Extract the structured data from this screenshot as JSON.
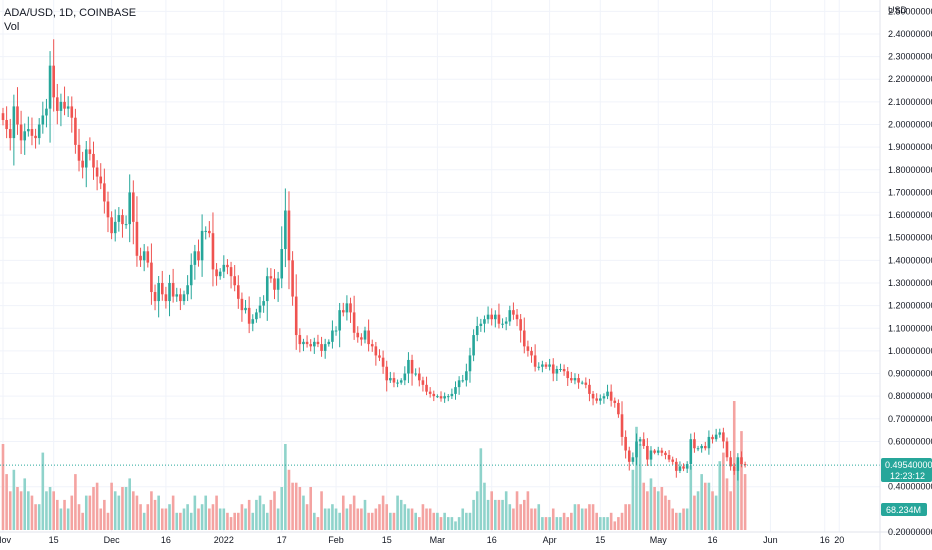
{
  "legend": {
    "symbol": "ADA/USD, 1D, COINBASE",
    "volume_label": "Vol"
  },
  "colors": {
    "up": "#26a69a",
    "down": "#ef5350",
    "up_volume": "#8fd3cb",
    "down_volume": "#f4a3a1",
    "grid": "#f0f3fa",
    "badge": "#26a69a",
    "text": "#131722"
  },
  "price_badge": {
    "value": "0.49540000",
    "countdown": "12:23:12"
  },
  "volume_badge": {
    "value": "68.234M"
  },
  "chart_data": {
    "type": "candlestick",
    "currency_label": "USD",
    "ylim": [
      0.2,
      2.55
    ],
    "y_ticks": [
      "2.50000000",
      "2.40000000",
      "2.30000000",
      "2.20000000",
      "2.10000000",
      "2.00000000",
      "1.90000000",
      "1.80000000",
      "1.70000000",
      "1.60000000",
      "1.50000000",
      "1.40000000",
      "1.30000000",
      "1.20000000",
      "1.10000000",
      "1.00000000",
      "0.90000000",
      "0.80000000",
      "0.70000000",
      "0.60000000",
      "0.40000000",
      "0.20000000"
    ],
    "x_ticks": [
      {
        "label": "Nov",
        "day": 0
      },
      {
        "label": "15",
        "day": 14
      },
      {
        "label": "Dec",
        "day": 30
      },
      {
        "label": "16",
        "day": 45
      },
      {
        "label": "2022",
        "day": 61
      },
      {
        "label": "17",
        "day": 77
      },
      {
        "label": "Feb",
        "day": 92
      },
      {
        "label": "15",
        "day": 106
      },
      {
        "label": "Mar",
        "day": 120
      },
      {
        "label": "16",
        "day": 135
      },
      {
        "label": "Apr",
        "day": 151
      },
      {
        "label": "15",
        "day": 165
      },
      {
        "label": "May",
        "day": 181
      },
      {
        "label": "16",
        "day": 196
      },
      {
        "label": "Jun",
        "day": 212
      },
      {
        "label": "16",
        "day": 227
      },
      {
        "label": "20",
        "day": 231
      }
    ],
    "closes": [
      2.02,
      1.98,
      1.94,
      2.08,
      2.0,
      1.93,
      1.97,
      1.98,
      1.95,
      1.94,
      2.0,
      2.04,
      2.07,
      2.26,
      2.12,
      2.06,
      2.1,
      2.07,
      2.08,
      2.03,
      1.91,
      1.84,
      1.81,
      1.89,
      1.87,
      1.81,
      1.77,
      1.74,
      1.66,
      1.59,
      1.52,
      1.57,
      1.6,
      1.56,
      1.56,
      1.7,
      1.57,
      1.42,
      1.4,
      1.44,
      1.39,
      1.26,
      1.22,
      1.3,
      1.25,
      1.22,
      1.3,
      1.24,
      1.25,
      1.22,
      1.25,
      1.29,
      1.38,
      1.44,
      1.4,
      1.53,
      1.53,
      1.52,
      1.36,
      1.33,
      1.35,
      1.38,
      1.37,
      1.33,
      1.29,
      1.23,
      1.18,
      1.19,
      1.12,
      1.14,
      1.17,
      1.2,
      1.22,
      1.33,
      1.32,
      1.27,
      1.32,
      1.45,
      1.62,
      1.4,
      1.24,
      1.07,
      1.03,
      1.04,
      1.03,
      1.02,
      1.04,
      1.03,
      1.0,
      1.03,
      1.04,
      1.09,
      1.09,
      1.18,
      1.17,
      1.21,
      1.17,
      1.08,
      1.06,
      1.05,
      1.09,
      1.03,
      1.02,
      0.98,
      0.97,
      0.93,
      0.87,
      0.88,
      0.86,
      0.86,
      0.87,
      0.9,
      0.96,
      0.9,
      0.9,
      0.87,
      0.85,
      0.82,
      0.81,
      0.8,
      0.8,
      0.79,
      0.8,
      0.8,
      0.81,
      0.84,
      0.87,
      0.87,
      0.91,
      0.98,
      1.07,
      1.11,
      1.12,
      1.14,
      1.16,
      1.14,
      1.16,
      1.12,
      1.12,
      1.13,
      1.18,
      1.16,
      1.14,
      1.09,
      1.02,
      1.0,
      0.98,
      0.93,
      0.93,
      0.94,
      0.93,
      0.94,
      0.9,
      0.92,
      0.92,
      0.91,
      0.88,
      0.87,
      0.88,
      0.86,
      0.86,
      0.85,
      0.81,
      0.79,
      0.78,
      0.79,
      0.8,
      0.82,
      0.78,
      0.77,
      0.72,
      0.62,
      0.56,
      0.51,
      0.53,
      0.6,
      0.61,
      0.58,
      0.52,
      0.56,
      0.55,
      0.56,
      0.55,
      0.54,
      0.52,
      0.51,
      0.47,
      0.49,
      0.48,
      0.5,
      0.61,
      0.57,
      0.57,
      0.58,
      0.57,
      0.62,
      0.61,
      0.63,
      0.64,
      0.6,
      0.53,
      0.49,
      0.47,
      0.53,
      0.5,
      0.4954
    ],
    "volumes": [
      20,
      13,
      9,
      14,
      10,
      9,
      12,
      9,
      8,
      6,
      6,
      18,
      9,
      10,
      9,
      7,
      5,
      7,
      5,
      8,
      13,
      6,
      4,
      8,
      8,
      10,
      11,
      5,
      7,
      4,
      11,
      9,
      8,
      10,
      10,
      12,
      9,
      8,
      6,
      4,
      6,
      9,
      7,
      8,
      5,
      5,
      6,
      8,
      4,
      4,
      5,
      6,
      4,
      8,
      5,
      6,
      8,
      5,
      6,
      8,
      5,
      5,
      4,
      3,
      4,
      4,
      6,
      5,
      7,
      4,
      7,
      8,
      6,
      4,
      7,
      9,
      5,
      10,
      20,
      14,
      11,
      11,
      10,
      8,
      6,
      10,
      4,
      3,
      9,
      5,
      5,
      6,
      5,
      4,
      8,
      5,
      6,
      8,
      5,
      5,
      7,
      4,
      4,
      5,
      6,
      8,
      6,
      4,
      4,
      8,
      7,
      6,
      5,
      5,
      4,
      3,
      6,
      5,
      5,
      4,
      4,
      3,
      4,
      3,
      3,
      2,
      3,
      5,
      4,
      4,
      7,
      9,
      19,
      11,
      7,
      9,
      7,
      7,
      7,
      9,
      6,
      5,
      9,
      6,
      7,
      9,
      5,
      5,
      6,
      3,
      3,
      3,
      5,
      3,
      3,
      4,
      3,
      4,
      6,
      6,
      5,
      5,
      6,
      6,
      4,
      3,
      3,
      3,
      4,
      2,
      3,
      4,
      6,
      6,
      14,
      24,
      20,
      11,
      9,
      12,
      10,
      9,
      10,
      8,
      7,
      5,
      4,
      4,
      5,
      5,
      15,
      8,
      9,
      13,
      11,
      11,
      9,
      8,
      16,
      18,
      12,
      9,
      30,
      16,
      23,
      13,
      12,
      10
    ]
  }
}
